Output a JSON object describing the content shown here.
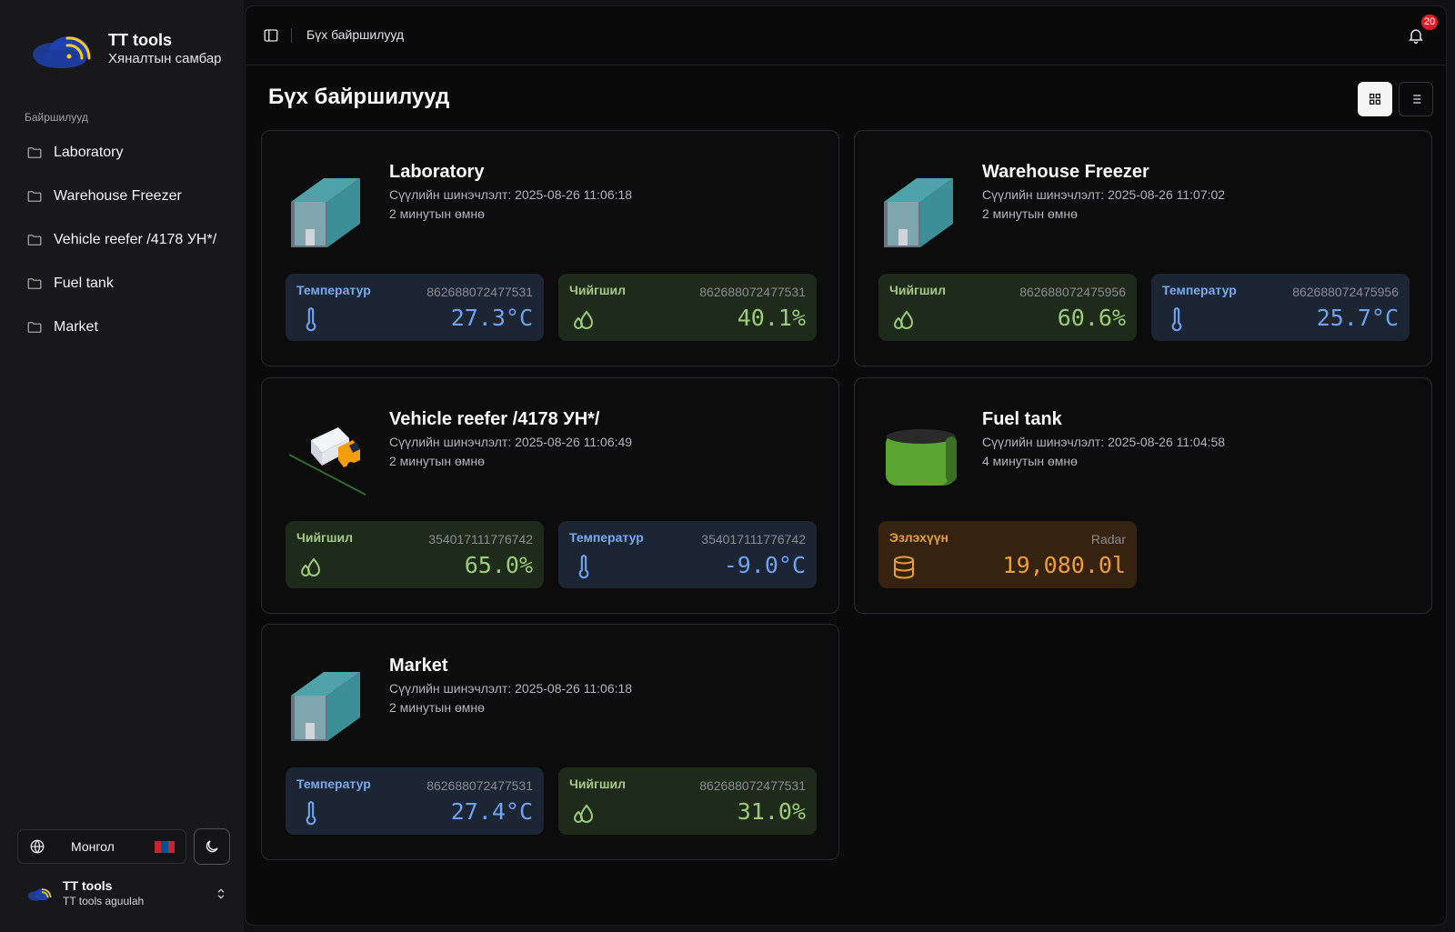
{
  "brand": {
    "title": "TT tools",
    "subtitle": "Хяналтын самбар"
  },
  "sidebar": {
    "section_label": "Байршилууд",
    "items": [
      {
        "label": "Laboratory"
      },
      {
        "label": "Warehouse Freezer"
      },
      {
        "label": "Vehicle reefer /4178 УН*/"
      },
      {
        "label": "Fuel tank"
      },
      {
        "label": "Market"
      }
    ],
    "language": "Монгол",
    "user": {
      "name": "TT tools",
      "sub": "TT tools aguulah"
    }
  },
  "topbar": {
    "breadcrumb": "Бүх байршилууд",
    "notification_count": "20"
  },
  "page": {
    "title": "Бүх байршилууд"
  },
  "icons": {
    "panel": "sidebar-toggle-icon",
    "bell": "bell-icon",
    "grid": "grid-view-icon",
    "list": "list-view-icon",
    "folder": "folder-icon",
    "globe": "globe-icon",
    "moon": "moon-icon",
    "chevrons": "chevrons-up-down-icon",
    "thermometer": "thermometer-icon",
    "droplets": "droplets-icon",
    "database": "database-icon"
  },
  "colors": {
    "temperature": "#6fa3ef",
    "humidity": "#9ccc79",
    "fuel": "#ee9e37",
    "badge": "#e11d2a"
  },
  "locations": [
    {
      "title": "Laboratory",
      "updated": "Сүүлийн шинэчлэлт: 2025-08-26 11:06:18",
      "ago": "2 минутын өмнө",
      "sensors": [
        {
          "label": "Температур",
          "id": "862688072477531",
          "value": "27.3°C"
        },
        {
          "label": "Чийгшил",
          "id": "862688072477531",
          "value": "40.1%"
        }
      ]
    },
    {
      "title": "Warehouse Freezer",
      "updated": "Сүүлийн шинэчлэлт: 2025-08-26 11:07:02",
      "ago": "2 минутын өмнө",
      "sensors": [
        {
          "label": "Чийгшил",
          "id": "862688072475956",
          "value": "60.6%"
        },
        {
          "label": "Температур",
          "id": "862688072475956",
          "value": "25.7°C"
        }
      ]
    },
    {
      "title": "Vehicle reefer /4178 УН*/",
      "updated": "Сүүлийн шинэчлэлт: 2025-08-26 11:06:49",
      "ago": "2 минутын өмнө",
      "sensors": [
        {
          "label": "Чийгшил",
          "id": "354017111776742",
          "value": "65.0%"
        },
        {
          "label": "Температур",
          "id": "354017111776742",
          "value": "-9.0°C"
        }
      ]
    },
    {
      "title": "Fuel tank",
      "updated": "Сүүлийн шинэчлэлт: 2025-08-26 11:04:58",
      "ago": "4 минутын өмнө",
      "sensors": [
        {
          "label": "Эзлэхүүн",
          "id": "Radar",
          "value": "19,080.0l"
        }
      ]
    },
    {
      "title": "Market",
      "updated": "Сүүлийн шинэчлэлт: 2025-08-26 11:06:18",
      "ago": "2 минутын өмнө",
      "sensors": [
        {
          "label": "Температур",
          "id": "862688072477531",
          "value": "27.4°C"
        },
        {
          "label": "Чийгшил",
          "id": "862688072477531",
          "value": "31.0%"
        }
      ]
    }
  ]
}
